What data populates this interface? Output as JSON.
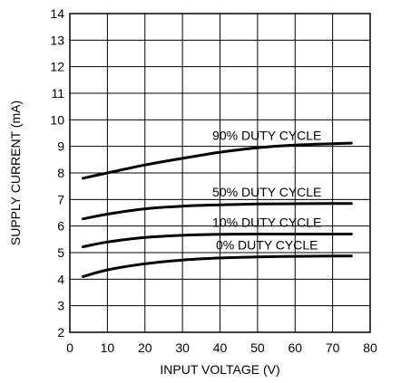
{
  "chart_data": {
    "type": "line",
    "title": "",
    "xlabel": "INPUT VOLTAGE (V)",
    "ylabel": "SUPPLY CURRENT (mA)",
    "xlim": [
      0,
      80
    ],
    "ylim": [
      2,
      14
    ],
    "xticks": [
      0,
      10,
      20,
      30,
      40,
      50,
      60,
      70,
      80
    ],
    "yticks": [
      2,
      3,
      4,
      5,
      6,
      7,
      8,
      9,
      10,
      11,
      12,
      13,
      14
    ],
    "grid": true,
    "series": [
      {
        "name": "90% DUTY CYCLE",
        "x": [
          3.5,
          10,
          20,
          30,
          40,
          50,
          60,
          70,
          75
        ],
        "y": [
          7.8,
          8.0,
          8.3,
          8.55,
          8.78,
          8.95,
          9.05,
          9.1,
          9.12
        ]
      },
      {
        "name": "50% DUTY CYCLE",
        "x": [
          3.5,
          10,
          20,
          30,
          40,
          50,
          60,
          70,
          75
        ],
        "y": [
          6.27,
          6.45,
          6.65,
          6.75,
          6.8,
          6.83,
          6.84,
          6.85,
          6.85
        ]
      },
      {
        "name": "10% DUTY CYCLE",
        "x": [
          3.5,
          10,
          20,
          30,
          40,
          50,
          60,
          70,
          75
        ],
        "y": [
          5.22,
          5.4,
          5.57,
          5.65,
          5.69,
          5.7,
          5.7,
          5.7,
          5.7
        ]
      },
      {
        "name": "0% DUTY CYCLE",
        "x": [
          3.5,
          10,
          20,
          30,
          40,
          50,
          60,
          70,
          75
        ],
        "y": [
          4.1,
          4.35,
          4.58,
          4.72,
          4.8,
          4.84,
          4.86,
          4.87,
          4.87
        ]
      }
    ]
  }
}
